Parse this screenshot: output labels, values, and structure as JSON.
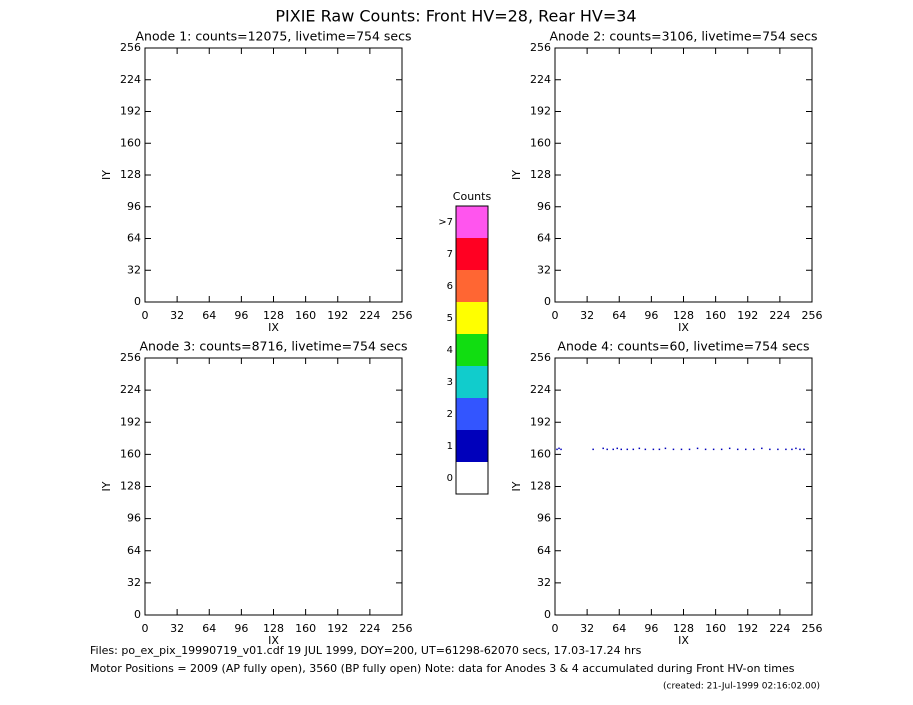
{
  "title": "PIXIE Raw Counts:  Front HV=28, Rear HV=34",
  "chart_data": [
    {
      "type": "scatter",
      "title": "Anode 1: counts=12075, livetime=754 secs",
      "xlabel": "IX",
      "ylabel": "IY",
      "xlim": [
        0,
        256
      ],
      "ylim": [
        0,
        256
      ],
      "xticks": [
        0,
        32,
        64,
        96,
        128,
        160,
        192,
        224,
        256
      ],
      "yticks": [
        0,
        32,
        64,
        96,
        128,
        160,
        192,
        224,
        256
      ]
    },
    {
      "type": "scatter",
      "title": "Anode 2: counts=3106, livetime=754 secs",
      "xlabel": "IX",
      "ylabel": "IY",
      "xlim": [
        0,
        256
      ],
      "ylim": [
        0,
        256
      ],
      "xticks": [
        0,
        32,
        64,
        96,
        128,
        160,
        192,
        224,
        256
      ],
      "yticks": [
        0,
        32,
        64,
        96,
        128,
        160,
        192,
        224,
        256
      ]
    },
    {
      "type": "scatter",
      "title": "Anode 3: counts=8716, livetime=754 secs",
      "xlabel": "IX",
      "ylabel": "IY",
      "xlim": [
        0,
        256
      ],
      "ylim": [
        0,
        256
      ],
      "xticks": [
        0,
        32,
        64,
        96,
        128,
        160,
        192,
        224,
        256
      ],
      "yticks": [
        0,
        32,
        64,
        96,
        128,
        160,
        192,
        224,
        256
      ]
    },
    {
      "type": "scatter",
      "title": "Anode 4: counts=60, livetime=754 secs",
      "xlabel": "IX",
      "ylabel": "IY",
      "xlim": [
        0,
        256
      ],
      "ylim": [
        0,
        256
      ],
      "xticks": [
        0,
        32,
        64,
        96,
        128,
        160,
        192,
        224,
        256
      ],
      "yticks": [
        0,
        32,
        64,
        96,
        128,
        160,
        192,
        224,
        256
      ],
      "series": [
        {
          "color": "#0000bb",
          "x": [
            2,
            4,
            6,
            38,
            48,
            52,
            58,
            62,
            66,
            72,
            78,
            84,
            90,
            98,
            104,
            110,
            118,
            126,
            134,
            142,
            150,
            158,
            166,
            174,
            182,
            190,
            198,
            206,
            214,
            222,
            230,
            236,
            240,
            244,
            248
          ],
          "y": [
            165,
            166,
            165,
            165,
            166,
            165,
            165,
            166,
            165,
            165,
            165,
            166,
            165,
            165,
            165,
            166,
            165,
            165,
            165,
            166,
            165,
            165,
            165,
            166,
            165,
            165,
            165,
            166,
            165,
            165,
            165,
            165,
            166,
            165,
            165
          ]
        }
      ]
    }
  ],
  "colorbar": {
    "title": "Counts",
    "labels": [
      ">7",
      "7",
      "6",
      "5",
      "4",
      "3",
      "2",
      "1",
      "0"
    ],
    "colors": [
      "#ff55ee",
      "#ff0022",
      "#ff6633",
      "#ffff00",
      "#11dd11",
      "#11cccc",
      "#3355ff",
      "#0000bb",
      "#ffffff"
    ]
  },
  "footer": [
    "Files: po_ex_pix_19990719_v01.cdf    19 JUL 1999, DOY=200, UT=61298-62070 secs, 17.03-17.24 hrs",
    "Motor Positions = 2009 (AP fully open), 3560 (BP fully open)    Note: data for Anodes 3 & 4 accumulated during Front HV-on times",
    "(created: 21-Jul-1999 02:16:02.00)"
  ]
}
